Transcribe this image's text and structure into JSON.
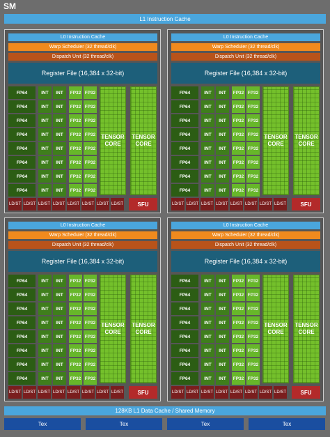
{
  "sm_title": "SM",
  "l1_instruction_cache": "L1 Instruction Cache",
  "partition": {
    "l0_cache": "L0 Instruction Cache",
    "warp_scheduler": "Warp Scheduler (32 thread/clk)",
    "dispatch_unit": "Dispatch Unit (32 thread/clk)",
    "register_file": "Register File (16,384 x 32-bit)",
    "fp64": "FP64",
    "int": "INT",
    "fp32": "FP32",
    "tensor_line1": "TENSOR",
    "tensor_line2": "CORE",
    "ldst_line1": "LD/",
    "ldst_line2": "ST",
    "sfu": "SFU"
  },
  "l1_data_cache": "128KB L1 Data Cache / Shared Memory",
  "tex_units": [
    "Tex",
    "Tex",
    "Tex",
    "Tex"
  ],
  "colors": {
    "cache_blue": "#4aa6dd",
    "warp_orange": "#f08a1e",
    "dispatch_brown": "#b8531a",
    "register_teal": "#1d5f7a",
    "fp64_dark_green": "#2c5d14",
    "int_green": "#3f7e1c",
    "fp32_light_green": "#67b72a",
    "tensor_green": "#74c02b",
    "ldst_red": "#7a1e1e",
    "sfu_red": "#b32a2a",
    "tex_blue": "#1a4ea0"
  }
}
